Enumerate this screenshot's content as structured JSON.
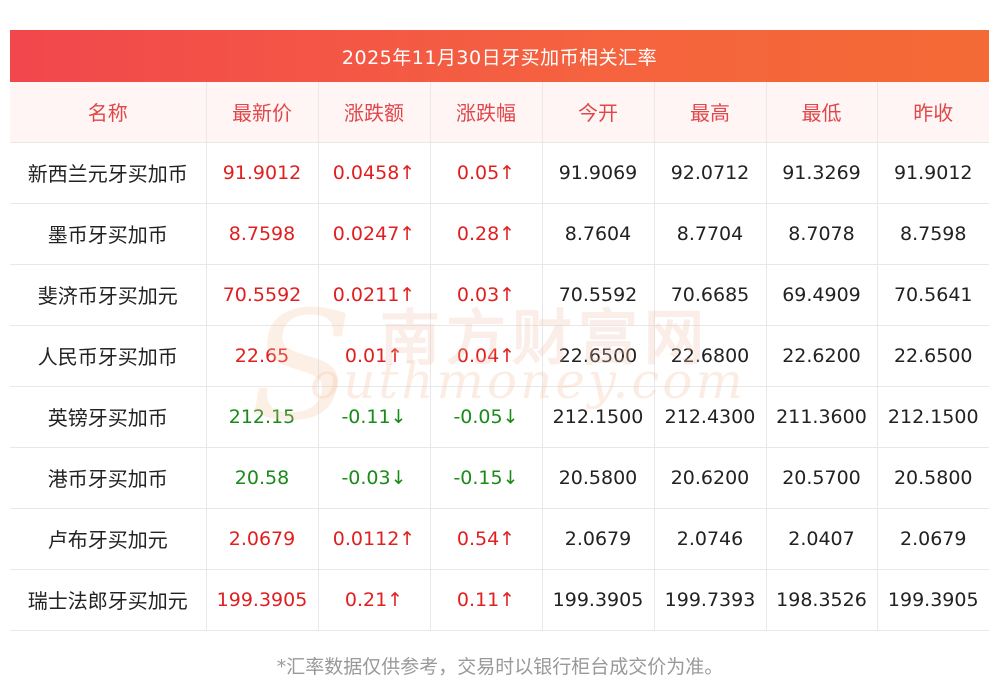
{
  "title": "2025年11月30日牙买加币相关汇率",
  "columns": [
    "名称",
    "最新价",
    "涨跌额",
    "涨跌幅",
    "今开",
    "最高",
    "最低",
    "昨收"
  ],
  "rows": [
    {
      "name": "新西兰元牙买加币",
      "latest": "91.9012",
      "change": "0.0458↑",
      "change_pct": "0.05↑",
      "open": "91.9069",
      "high": "92.0712",
      "low": "91.3269",
      "prev_close": "91.9012",
      "trend": "up"
    },
    {
      "name": "墨币牙买加币",
      "latest": "8.7598",
      "change": "0.0247↑",
      "change_pct": "0.28↑",
      "open": "8.7604",
      "high": "8.7704",
      "low": "8.7078",
      "prev_close": "8.7598",
      "trend": "up"
    },
    {
      "name": "斐济币牙买加元",
      "latest": "70.5592",
      "change": "0.0211↑",
      "change_pct": "0.03↑",
      "open": "70.5592",
      "high": "70.6685",
      "low": "69.4909",
      "prev_close": "70.5641",
      "trend": "up"
    },
    {
      "name": "人民币牙买加币",
      "latest": "22.65",
      "change": "0.01↑",
      "change_pct": "0.04↑",
      "open": "22.6500",
      "high": "22.6800",
      "low": "22.6200",
      "prev_close": "22.6500",
      "trend": "up"
    },
    {
      "name": "英镑牙买加币",
      "latest": "212.15",
      "change": "-0.11↓",
      "change_pct": "-0.05↓",
      "open": "212.1500",
      "high": "212.4300",
      "low": "211.3600",
      "prev_close": "212.1500",
      "trend": "down"
    },
    {
      "name": "港币牙买加币",
      "latest": "20.58",
      "change": "-0.03↓",
      "change_pct": "-0.15↓",
      "open": "20.5800",
      "high": "20.6200",
      "low": "20.5700",
      "prev_close": "20.5800",
      "trend": "down"
    },
    {
      "name": "卢布牙买加元",
      "latest": "2.0679",
      "change": "0.0112↑",
      "change_pct": "0.54↑",
      "open": "2.0679",
      "high": "2.0746",
      "low": "2.0407",
      "prev_close": "2.0679",
      "trend": "up"
    },
    {
      "name": "瑞士法郎牙买加元",
      "latest": "199.3905",
      "change": "0.21↑",
      "change_pct": "0.11↑",
      "open": "199.3905",
      "high": "199.7393",
      "low": "198.3526",
      "prev_close": "199.3905",
      "trend": "up"
    }
  ],
  "watermark": {
    "cn": "南方财富网",
    "en": "outhmoney.com",
    "s": "S"
  },
  "footnote": "*汇率数据仅供参考，交易时以银行柜台成交价为准。",
  "colors": {
    "up": "#e02020",
    "down": "#1a8a1a",
    "header_text": "#e0474a",
    "title_bar": "#f2474d"
  }
}
